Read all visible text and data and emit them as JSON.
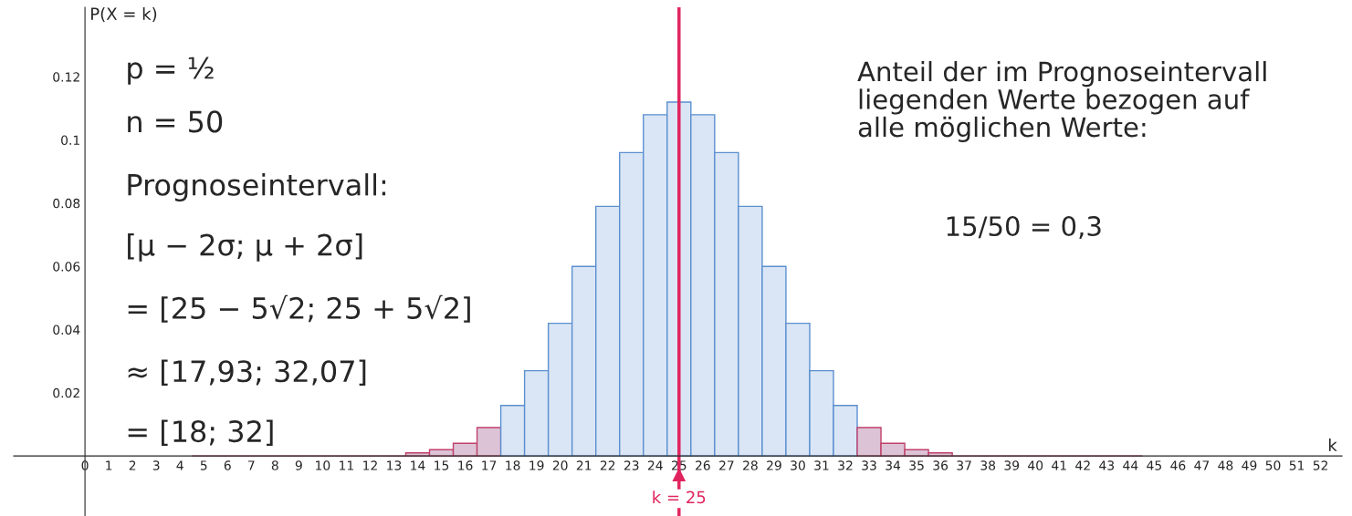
{
  "chart_data": {
    "type": "bar",
    "ylabel": "P(X = k)",
    "xlabel": "k",
    "x": [
      5,
      6,
      7,
      8,
      9,
      10,
      11,
      12,
      13,
      14,
      15,
      16,
      17,
      18,
      19,
      20,
      21,
      22,
      23,
      24,
      25,
      26,
      27,
      28,
      29,
      30,
      31,
      32,
      33,
      34,
      35,
      36,
      37,
      38,
      39,
      40,
      41,
      42,
      43,
      44
    ],
    "values": [
      0,
      0,
      0,
      0,
      0,
      0,
      0,
      0,
      0,
      0.001,
      0.002,
      0.004,
      0.009,
      0.016,
      0.027,
      0.042,
      0.06,
      0.079,
      0.096,
      0.108,
      0.112,
      0.108,
      0.096,
      0.079,
      0.06,
      0.042,
      0.027,
      0.016,
      0.009,
      0.004,
      0.002,
      0.001,
      0,
      0,
      0,
      0,
      0,
      0,
      0,
      0
    ],
    "colors": [
      "#c0406a",
      "#c0406a",
      "#c0406a",
      "#c0406a",
      "#c0406a",
      "#c0406a",
      "#c0406a",
      "#c0406a",
      "#c0406a",
      "#dcc4d6",
      "#dcc4d6",
      "#dcc4d6",
      "#dcc4d6",
      "#dae6f5",
      "#dae6f5",
      "#dae6f5",
      "#dae6f5",
      "#dae6f5",
      "#dae6f5",
      "#dae6f5",
      "#dae6f5",
      "#dae6f5",
      "#dae6f5",
      "#dae6f5",
      "#dae6f5",
      "#dae6f5",
      "#dae6f5",
      "#dae6f5",
      "#dcc4d6",
      "#dcc4d6",
      "#dcc4d6",
      "#dcc4d6",
      "#c0406a",
      "#c0406a",
      "#c0406a",
      "#c0406a",
      "#c0406a",
      "#c0406a",
      "#c0406a",
      "#c0406a"
    ],
    "xlim": [
      -3,
      52.9
    ],
    "ylim": [
      -0.019,
      0.142
    ],
    "xticks": [
      0,
      1,
      2,
      3,
      4,
      5,
      6,
      7,
      8,
      9,
      10,
      11,
      12,
      13,
      14,
      15,
      16,
      17,
      18,
      19,
      20,
      21,
      22,
      23,
      24,
      25,
      26,
      27,
      28,
      29,
      30,
      31,
      32,
      33,
      34,
      35,
      36,
      37,
      38,
      39,
      40,
      41,
      42,
      43,
      44,
      45,
      46,
      47,
      48,
      49,
      50,
      51,
      52
    ],
    "yticks": [
      0.02,
      0.04,
      0.06,
      0.08,
      {
        "value": 0.1,
        "label": "0.1"
      },
      0.12
    ],
    "ref_lines": [
      {
        "axis": "x",
        "value": 25,
        "label": "k = 25",
        "color": "#e0245e"
      }
    ],
    "annotations": [
      "p = ½",
      "n = 50",
      "Prognoseintervall:",
      "[μ − 2σ; μ + 2σ]",
      "= [25 − 5√2; 25 + 5√2]",
      "≈ [17,93; 32,07]",
      "= [18; 32]",
      "Anteil der im Prognoseintervall\nliegenden Werte bezogen auf\nalle möglichen Werte:",
      "15/50 = 0,3"
    ],
    "grid": false,
    "legend": false
  }
}
